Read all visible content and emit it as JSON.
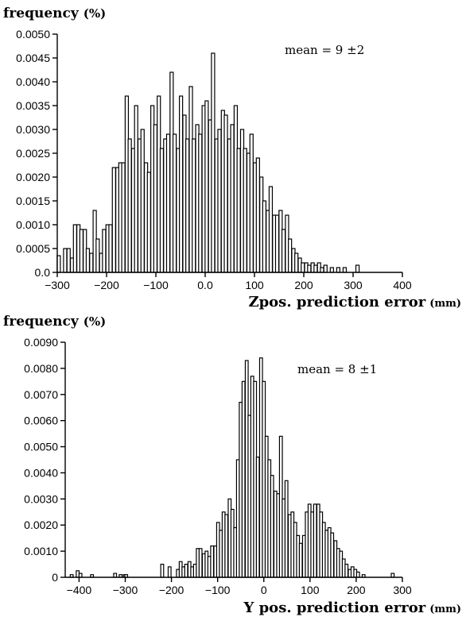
{
  "chart_data": [
    {
      "type": "bar",
      "ylabel": "frequency",
      "ylabel_unit": "(%)",
      "xlabel": "Zpos. prediction error",
      "xlabel_unit": "(mm)",
      "annotation": "mean = 9 ±2",
      "xlim": [
        -300,
        400
      ],
      "ylim": [
        0,
        0.005
      ],
      "xticks": [
        -300,
        -200,
        -100,
        0.0,
        100,
        200,
        300,
        400
      ],
      "xtick_labels": [
        "−300",
        "−200",
        "−100",
        "0.0",
        "100",
        "200",
        "300",
        "400"
      ],
      "yticks": [
        0.0,
        0.0005,
        0.001,
        0.0015,
        0.002,
        0.0025,
        0.003,
        0.0035,
        0.004,
        0.0045,
        0.005
      ],
      "ytick_labels": [
        "0.0",
        "0.0005",
        "0.0010",
        "0.0015",
        "0.0020",
        "0.0025",
        "0.0030",
        "0.0035",
        "0.0040",
        "0.0045",
        "0.0050"
      ],
      "bin_width": 6.5,
      "x": [
        -297,
        -284,
        -277,
        -270,
        -264,
        -257,
        -251,
        -244,
        -238,
        -231,
        -224,
        -218,
        -211,
        -205,
        -198,
        -192,
        -185,
        -178,
        -172,
        -166,
        -159,
        -153,
        -146,
        -140,
        -133,
        -127,
        -120,
        -114,
        -107,
        -101,
        -94,
        -88,
        -81,
        -75,
        -68,
        -62,
        -55,
        -49,
        -42,
        -36,
        -29,
        -23,
        -16,
        -10,
        -3,
        3,
        10,
        16,
        23,
        29,
        36,
        42,
        49,
        55,
        62,
        68,
        75,
        81,
        88,
        94,
        101,
        107,
        114,
        120,
        127,
        133,
        140,
        146,
        153,
        159,
        166,
        172,
        179,
        185,
        192,
        198,
        205,
        211,
        218,
        224,
        231,
        237,
        244,
        257,
        270,
        283,
        309
      ],
      "values": [
        0.00035,
        0.0005,
        0.0005,
        0.0003,
        0.001,
        0.001,
        0.0009,
        0.0009,
        0.0005,
        0.0004,
        0.0013,
        0.0007,
        0.0004,
        0.0009,
        0.001,
        0.001,
        0.0022,
        0.0022,
        0.0023,
        0.0023,
        0.0037,
        0.0028,
        0.0026,
        0.0035,
        0.0028,
        0.003,
        0.0023,
        0.0021,
        0.0035,
        0.0031,
        0.0037,
        0.0026,
        0.0028,
        0.0029,
        0.0042,
        0.0029,
        0.0026,
        0.0037,
        0.0033,
        0.0028,
        0.0039,
        0.0028,
        0.0031,
        0.0029,
        0.0035,
        0.0036,
        0.0032,
        0.0046,
        0.0028,
        0.003,
        0.0034,
        0.0033,
        0.0028,
        0.0031,
        0.0035,
        0.0026,
        0.003,
        0.0026,
        0.0025,
        0.0029,
        0.0023,
        0.0024,
        0.002,
        0.0015,
        0.0013,
        0.0018,
        0.0012,
        0.0012,
        0.0013,
        0.0009,
        0.0012,
        0.0007,
        0.0005,
        0.0004,
        0.0003,
        0.0002,
        0.0002,
        0.00015,
        0.0002,
        0.00015,
        0.0002,
        0.0001,
        0.00015,
        0.0001,
        0.0001,
        0.0001,
        0.00015
      ]
    },
    {
      "type": "bar",
      "ylabel": "frequency",
      "ylabel_unit": "(%)",
      "xlabel": "Y pos. prediction error",
      "xlabel_unit": "(mm)",
      "annotation": "mean = 8 ±1",
      "xlim": [
        -430,
        300
      ],
      "ylim": [
        0,
        0.009
      ],
      "xticks": [
        -400,
        -300,
        -200,
        -100,
        0,
        100,
        200,
        300
      ],
      "xtick_labels": [
        "−400",
        "−300",
        "−200",
        "−100",
        "0",
        "100",
        "200",
        "300"
      ],
      "yticks": [
        0,
        0.001,
        0.002,
        0.003,
        0.004,
        0.005,
        0.006,
        0.007,
        0.008,
        0.009
      ],
      "ytick_labels": [
        "0",
        "0.0010",
        "0.0020",
        "0.0030",
        "0.0040",
        "0.0050",
        "0.0060",
        "0.0070",
        "0.0080",
        "0.0090"
      ],
      "bin_width": 6.2,
      "x": [
        -416,
        -403,
        -397,
        -372,
        -322,
        -310,
        -301,
        -298,
        -220,
        -204,
        -186,
        -180,
        -174,
        -168,
        -161,
        -155,
        -149,
        -143,
        -137,
        -130,
        -124,
        -118,
        -112,
        -105,
        -99,
        -93,
        -87,
        -81,
        -74,
        -68,
        -62,
        -56,
        -50,
        -44,
        -37,
        -31,
        -25,
        -19,
        -13,
        -6,
        0,
        6,
        12,
        18,
        25,
        31,
        37,
        43,
        49,
        56,
        62,
        68,
        74,
        80,
        87,
        93,
        99,
        105,
        111,
        118,
        124,
        130,
        136,
        142,
        148,
        155,
        161,
        167,
        173,
        179,
        186,
        192,
        198,
        204,
        216,
        279
      ],
      "values": [
        0.0001,
        0.00025,
        0.00015,
        0.0001,
        0.00015,
        0.0001,
        0.0001,
        0.0001,
        0.0005,
        0.0004,
        0.0003,
        0.0006,
        0.0004,
        0.0005,
        0.0006,
        0.0004,
        0.0005,
        0.0011,
        0.0011,
        0.0009,
        0.001,
        0.0008,
        0.0012,
        0.0012,
        0.0021,
        0.0018,
        0.0025,
        0.0024,
        0.003,
        0.0026,
        0.0019,
        0.0045,
        0.0067,
        0.0075,
        0.0083,
        0.0062,
        0.0077,
        0.0075,
        0.0046,
        0.0084,
        0.0075,
        0.0054,
        0.0045,
        0.0039,
        0.0033,
        0.0032,
        0.0054,
        0.003,
        0.0037,
        0.0024,
        0.0025,
        0.0021,
        0.0016,
        0.0013,
        0.0016,
        0.0025,
        0.0028,
        0.0025,
        0.0028,
        0.0028,
        0.0025,
        0.0021,
        0.0018,
        0.0019,
        0.0017,
        0.0014,
        0.0011,
        0.001,
        0.0007,
        0.0005,
        0.0003,
        0.0004,
        0.0003,
        0.0002,
        0.0001,
        0.00015
      ]
    }
  ]
}
